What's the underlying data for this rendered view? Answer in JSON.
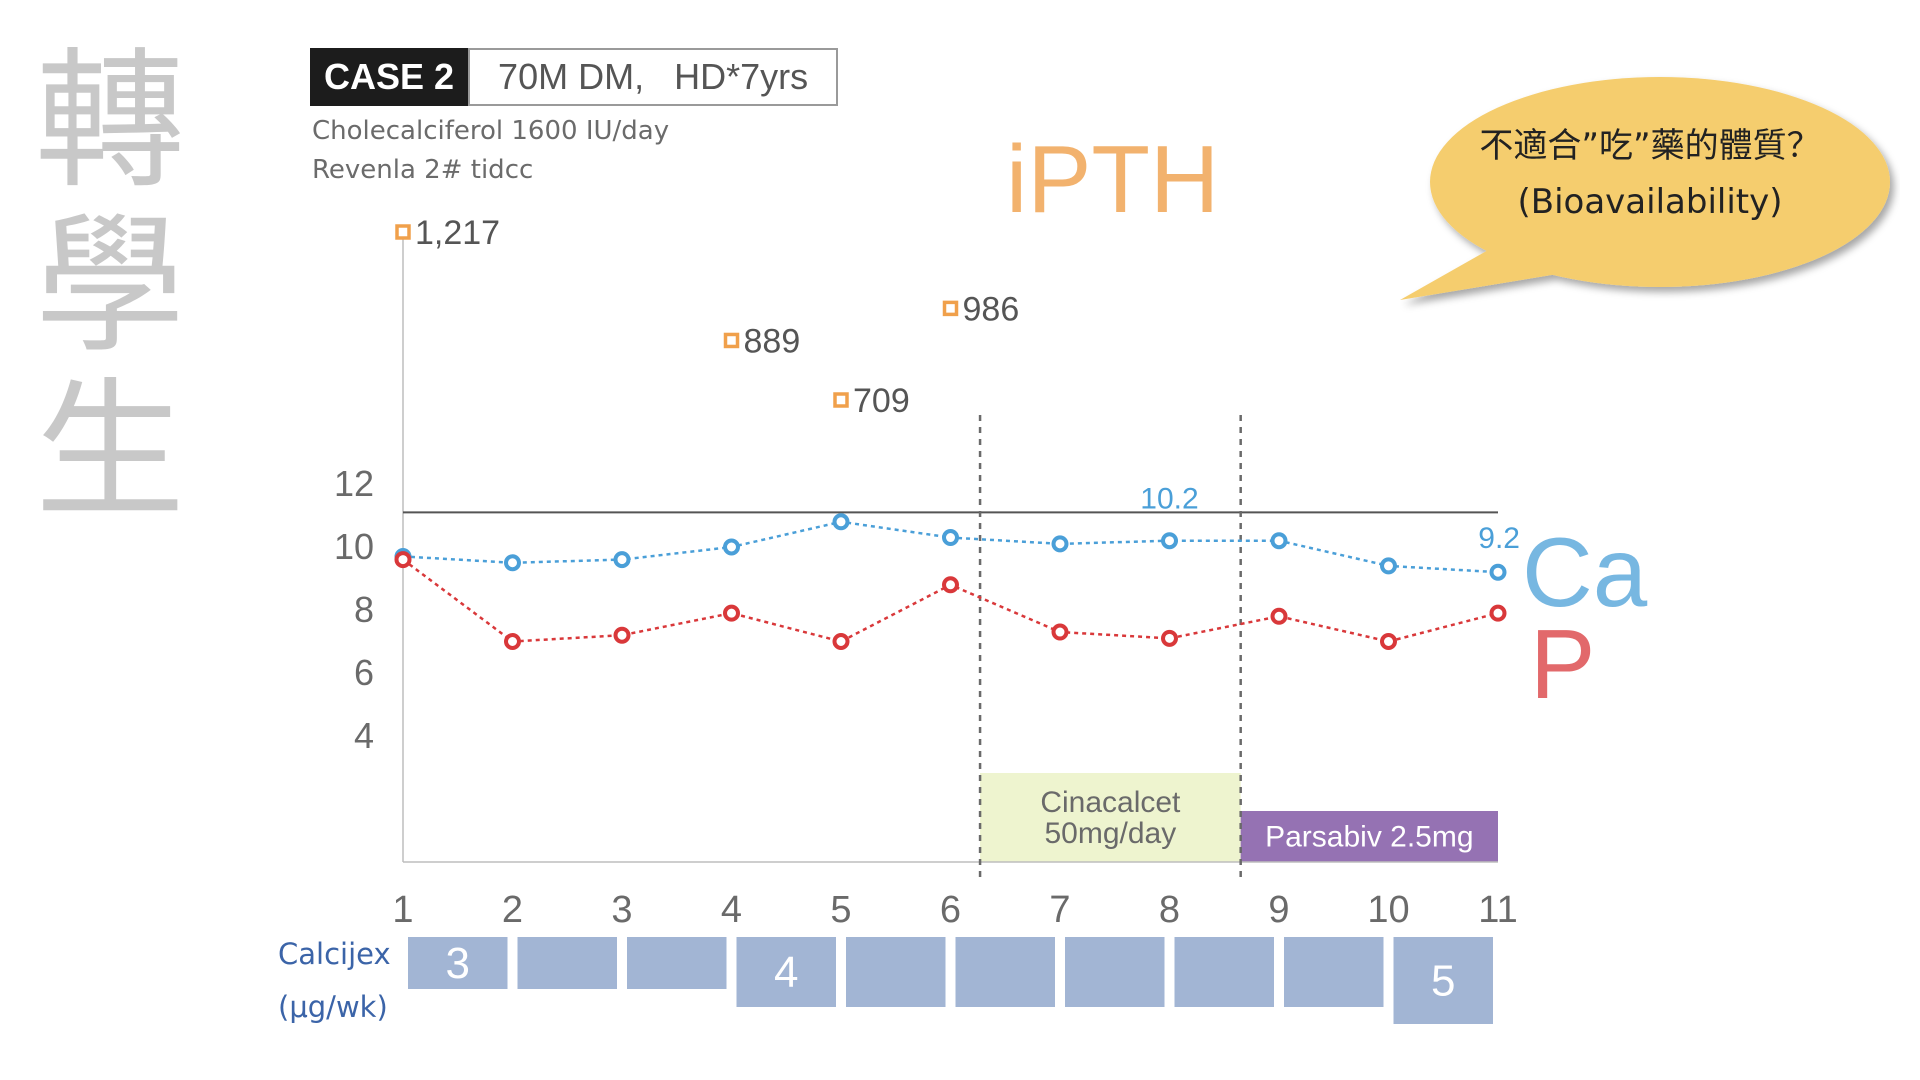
{
  "side_title": [
    "轉",
    "學",
    "生"
  ],
  "case": {
    "label": "CASE 2",
    "description": "70M DM,   HD*7yrs"
  },
  "prescriptions": [
    "Cholecalciferol 1600 IU/day",
    "Revenla 2# tidcc"
  ],
  "callout": {
    "line1": "不適合”吃”藥的體質？",
    "line2": "(Bioavailability)"
  },
  "colors": {
    "ipth": "#f0a04b",
    "ca": "#4a9fd8",
    "p": "#d9383a",
    "cinacalcet_bg": "#eef4cf",
    "parsabiv_bg": "#9572b3",
    "calcijex": "#a2b5d4",
    "bubble": "#f5cd6e"
  },
  "chart_data": {
    "type": "line",
    "x": [
      1,
      2,
      3,
      4,
      5,
      6,
      7,
      8,
      9,
      10,
      11
    ],
    "x_tick_labels": [
      "1",
      "2",
      "3",
      "4",
      "5",
      "6",
      "7",
      "8",
      "9",
      "10",
      "11"
    ],
    "y_tick_labels": [
      "12",
      "10",
      "8",
      "6",
      "4"
    ],
    "y_ticks": [
      12,
      10,
      8,
      6,
      4
    ],
    "ylim": [
      -0.8,
      13
    ],
    "reference_line": 11.1,
    "series": [
      {
        "name": "Ca",
        "x": [
          1,
          2,
          3,
          4,
          5,
          6,
          7,
          8,
          9,
          10,
          11
        ],
        "values": [
          9.7,
          9.5,
          9.6,
          10.0,
          10.8,
          10.3,
          10.1,
          10.2,
          10.2,
          9.4,
          9.2
        ],
        "labels": [
          {
            "x": 8,
            "text": "10.2"
          },
          {
            "x": 11,
            "text": "9.2"
          }
        ]
      },
      {
        "name": "P",
        "x": [
          1,
          2,
          3,
          4,
          5,
          6,
          7,
          8,
          9,
          10,
          11
        ],
        "values": [
          9.6,
          7.0,
          7.2,
          7.9,
          7.0,
          8.8,
          7.3,
          7.1,
          7.8,
          7.0,
          7.9
        ]
      }
    ],
    "ipth": {
      "name": "iPTH",
      "points": [
        {
          "x": 1,
          "value": 1217,
          "label": "1,217"
        },
        {
          "x": 4,
          "value": 889,
          "label": "889"
        },
        {
          "x": 5,
          "value": 709,
          "label": "709"
        },
        {
          "x": 6,
          "value": 986,
          "label": "986"
        }
      ],
      "scale_min": 709,
      "scale_max": 1217
    },
    "treatments": [
      {
        "label_lines": [
          "Cinacalcet",
          "50mg/day"
        ],
        "from": 6.27,
        "to": 8.65
      },
      {
        "label_lines": [
          "Parsabiv 2.5mg"
        ],
        "from": 8.65,
        "to": 11
      }
    ],
    "divider_x": [
      6.27,
      8.65
    ],
    "calcijex": {
      "label_lines": [
        "Calcijex",
        "(μg/wk)"
      ],
      "doses": [
        {
          "x": 1,
          "value": 3,
          "text": "3"
        },
        {
          "x": 2,
          "value": 3,
          "text": ""
        },
        {
          "x": 3,
          "value": 3,
          "text": ""
        },
        {
          "x": 4,
          "value": 4,
          "text": "4"
        },
        {
          "x": 5,
          "value": 4,
          "text": ""
        },
        {
          "x": 6,
          "value": 4,
          "text": ""
        },
        {
          "x": 7,
          "value": 4,
          "text": ""
        },
        {
          "x": 8,
          "value": 4,
          "text": ""
        },
        {
          "x": 9,
          "value": 4,
          "text": ""
        },
        {
          "x": 10,
          "value": 5,
          "text": "5"
        }
      ]
    }
  }
}
